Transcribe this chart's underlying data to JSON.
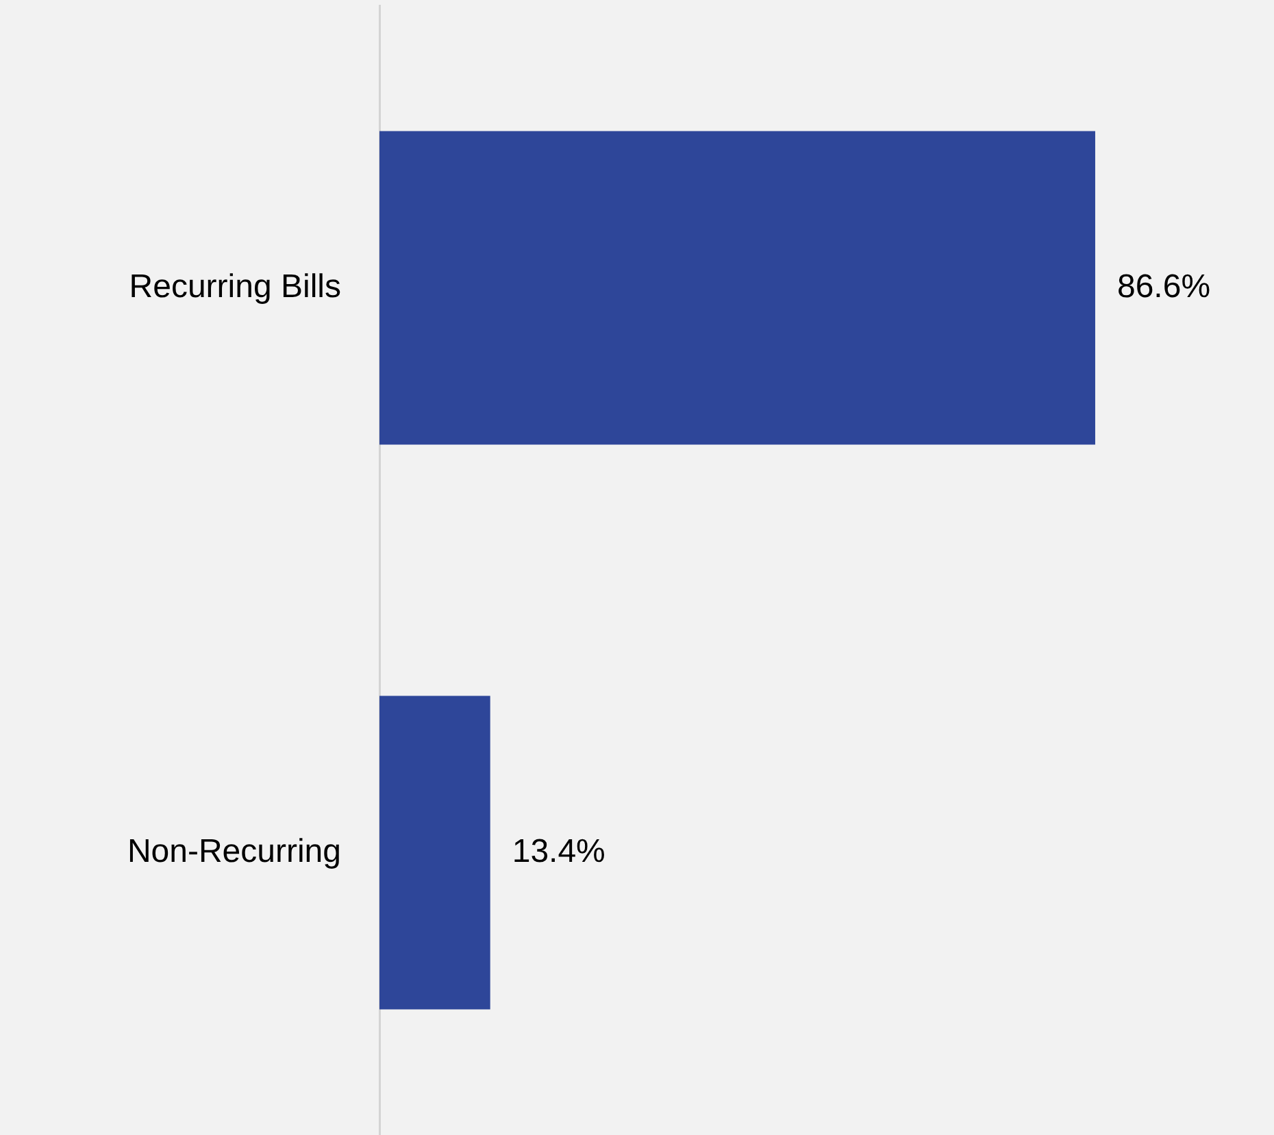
{
  "chart_data": {
    "type": "bar",
    "orientation": "horizontal",
    "categories": [
      "Recurring Bills",
      "Non-Recurring"
    ],
    "values": [
      86.6,
      13.4
    ],
    "color": "#2e4699",
    "value_labels": [
      "86.6%",
      "13.4%"
    ],
    "tick_labels": "y",
    "legend": false
  }
}
